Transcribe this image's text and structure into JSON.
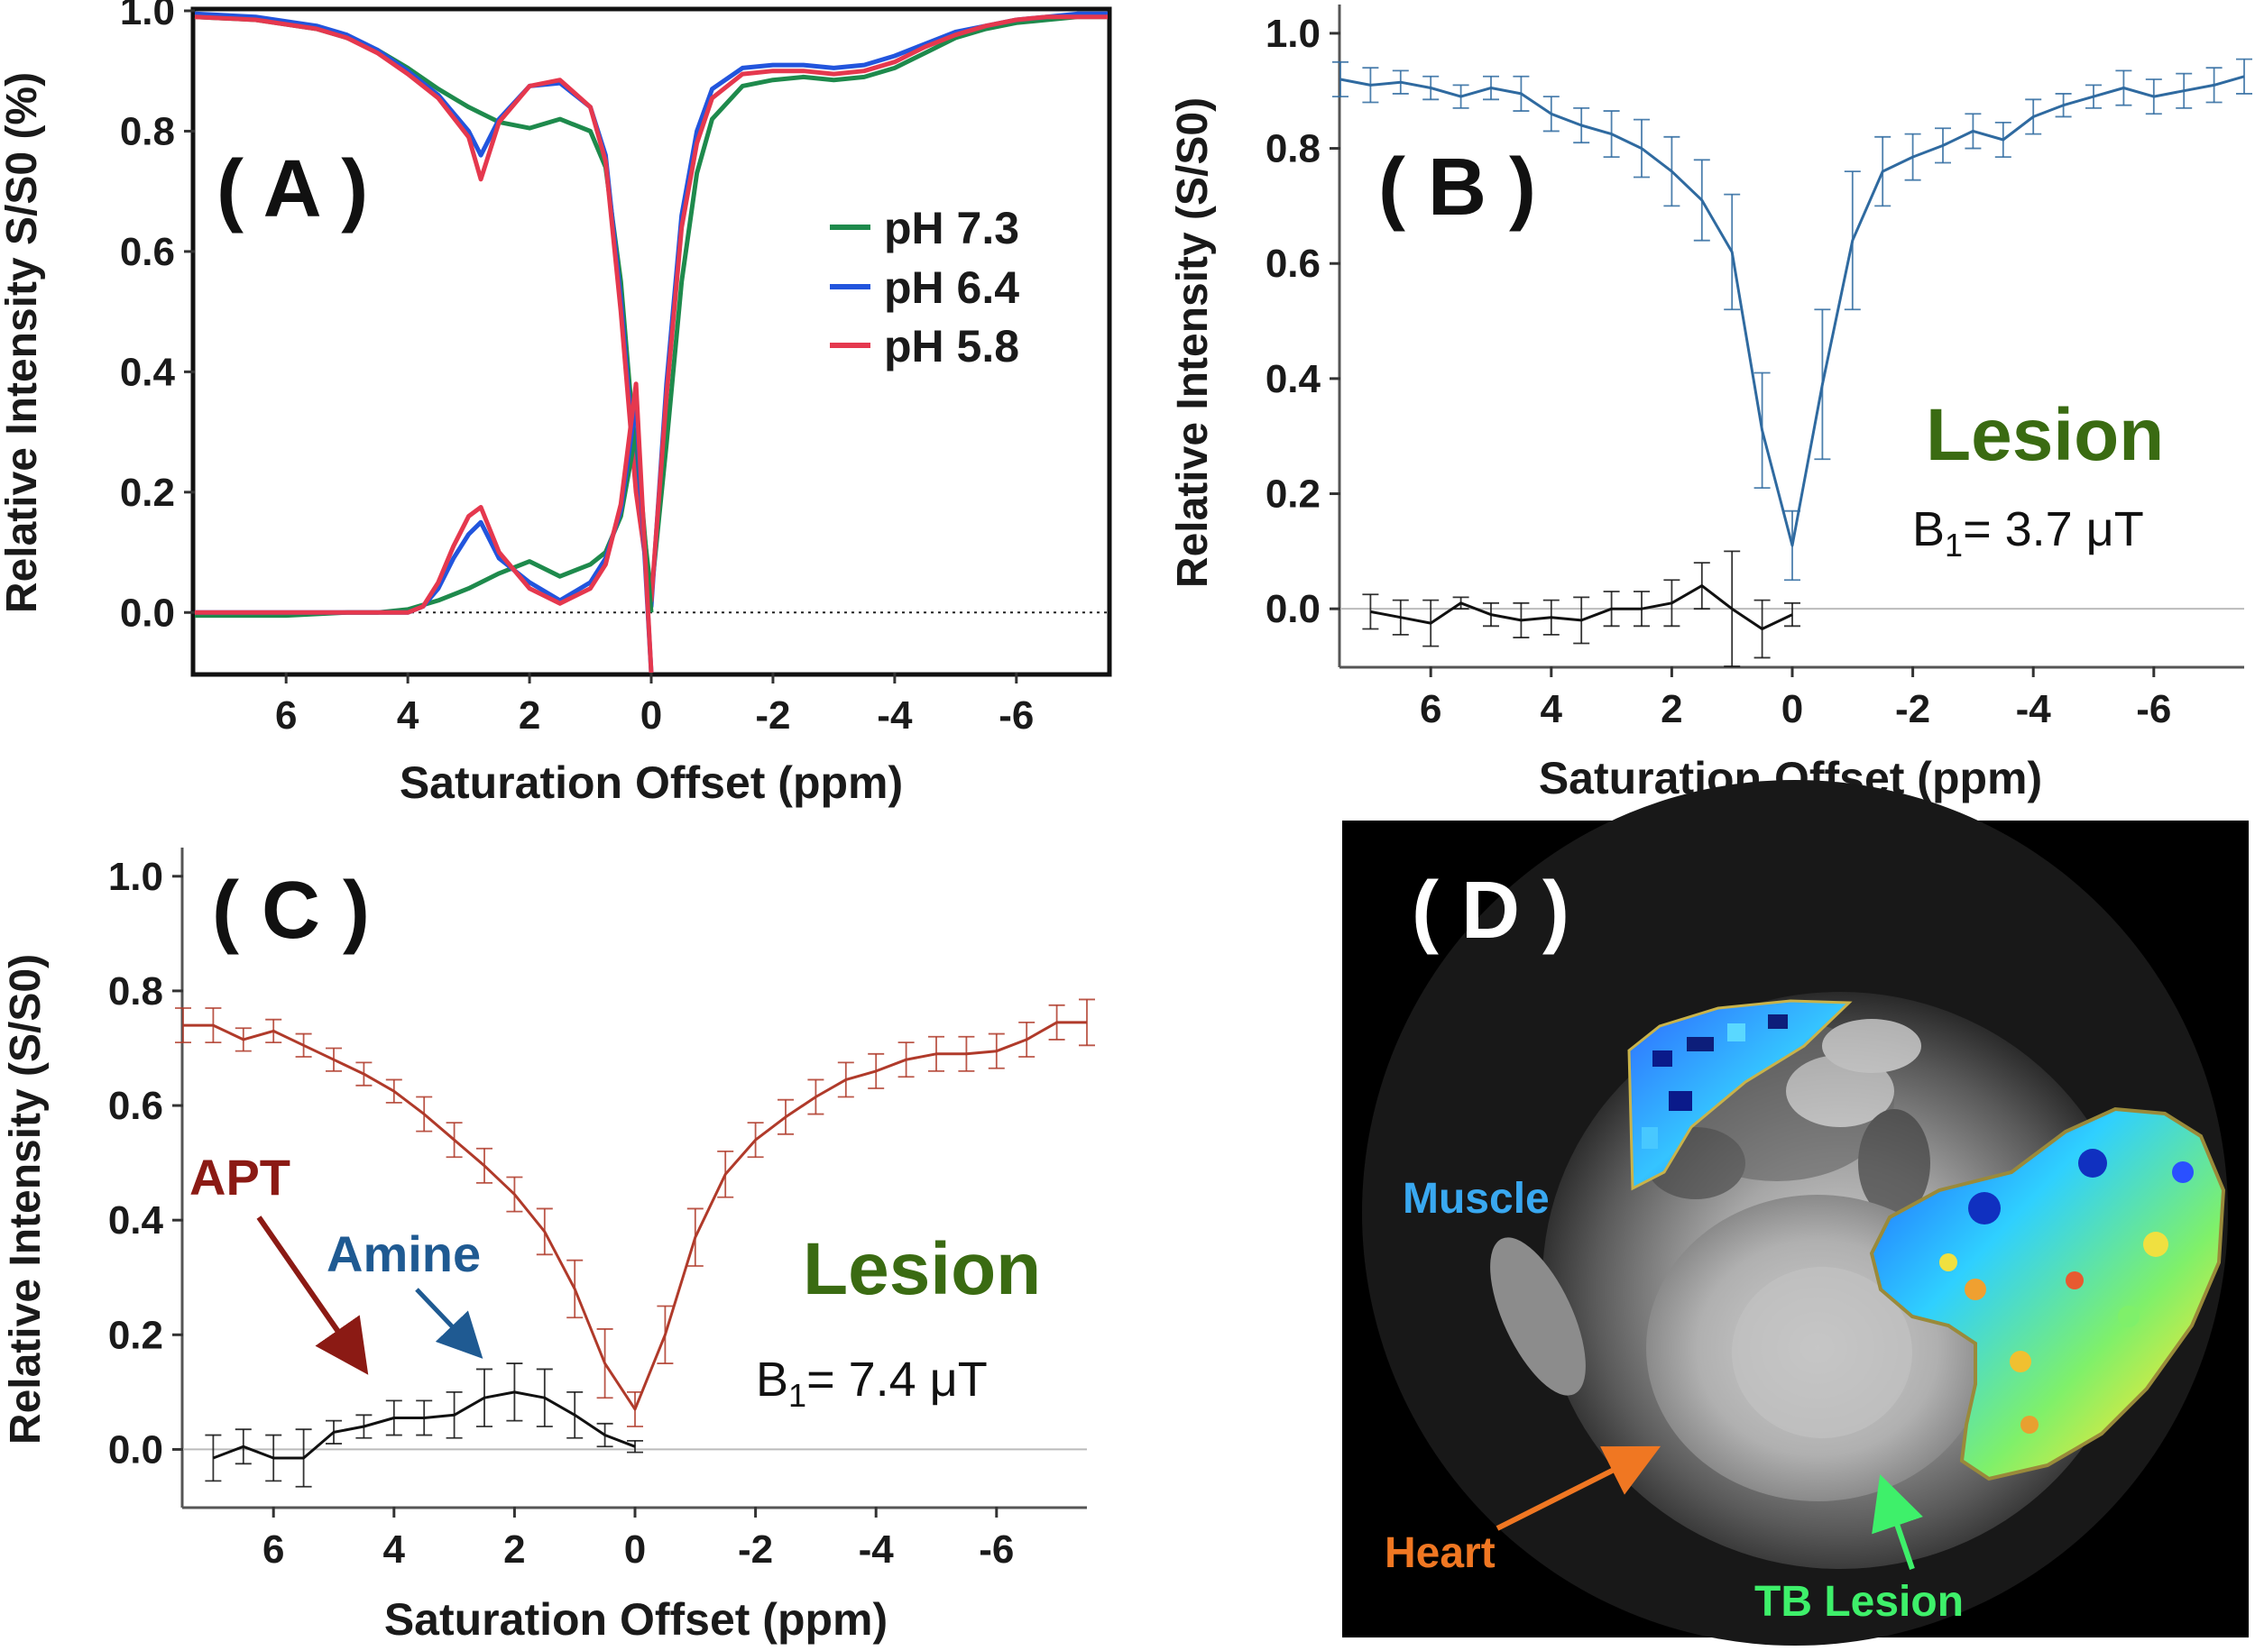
{
  "chart_data": [
    {
      "panel": "(A)",
      "type": "line",
      "ylabel": "Relative Intensity S/S0 (%)",
      "xlabel": "Saturation Offset (ppm)",
      "xlim": [
        7.5,
        -7.5
      ],
      "ylim": [
        -0.1,
        1.0
      ],
      "xticks": [
        "6",
        "4",
        "2",
        "0",
        "-2",
        "-4",
        "-6"
      ],
      "yticks": [
        "0.0",
        "0.2",
        "0.4",
        "0.6",
        "0.8",
        "1.0"
      ],
      "reference_line": 0,
      "legend": [
        "pH 7.3",
        "pH 6.4",
        "pH 5.8"
      ],
      "series": [
        {
          "name": "pH 7.3",
          "kind": "Z-spectrum",
          "color": "#1e8a4c",
          "x": [
            7.5,
            6.5,
            5.5,
            5,
            4.5,
            4,
            3.5,
            3,
            2.5,
            2,
            1.5,
            1,
            0.75,
            0.5,
            0.25,
            0,
            -0.25,
            -0.5,
            -0.75,
            -1,
            -1.5,
            -2,
            -2.5,
            -3,
            -3.5,
            -4,
            -4.5,
            -5,
            -5.5,
            -6,
            -6.5,
            -7,
            -7.5
          ],
          "y": [
            0.99,
            0.985,
            0.97,
            0.955,
            0.935,
            0.905,
            0.87,
            0.84,
            0.815,
            0.805,
            0.82,
            0.8,
            0.74,
            0.55,
            0.25,
            0.03,
            0.28,
            0.55,
            0.73,
            0.82,
            0.875,
            0.885,
            0.89,
            0.885,
            0.89,
            0.905,
            0.93,
            0.955,
            0.97,
            0.98,
            0.985,
            0.99,
            0.99
          ]
        },
        {
          "name": "pH 6.4",
          "kind": "Z-spectrum",
          "color": "#2255dd",
          "x": [
            7.5,
            6.5,
            5.5,
            5,
            4.5,
            4,
            3.5,
            3,
            2.8,
            2.5,
            2,
            1.5,
            1,
            0.75,
            0.5,
            0.25,
            0,
            -0.25,
            -0.5,
            -0.75,
            -1,
            -1.5,
            -2,
            -2.5,
            -3,
            -3.5,
            -4,
            -4.5,
            -5,
            -5.5,
            -6,
            -6.5,
            -7,
            -7.5
          ],
          "y": [
            0.995,
            0.99,
            0.975,
            0.96,
            0.935,
            0.9,
            0.86,
            0.8,
            0.76,
            0.82,
            0.875,
            0.88,
            0.84,
            0.76,
            0.52,
            0.22,
            0.01,
            0.38,
            0.66,
            0.8,
            0.87,
            0.905,
            0.91,
            0.91,
            0.905,
            0.91,
            0.925,
            0.945,
            0.965,
            0.975,
            0.985,
            0.99,
            0.995,
            0.995
          ]
        },
        {
          "name": "pH 5.8",
          "kind": "Z-spectrum",
          "color": "#e5384e",
          "x": [
            7.5,
            6.5,
            5.5,
            5,
            4.5,
            4,
            3.5,
            3,
            2.8,
            2.5,
            2,
            1.5,
            1,
            0.75,
            0.5,
            0.25,
            0,
            -0.25,
            -0.5,
            -0.75,
            -1,
            -1.5,
            -2,
            -2.5,
            -3,
            -3.5,
            -4,
            -4.5,
            -5,
            -5.5,
            -6,
            -6.5,
            -7,
            -7.5
          ],
          "y": [
            0.99,
            0.985,
            0.97,
            0.955,
            0.93,
            0.895,
            0.855,
            0.79,
            0.72,
            0.815,
            0.875,
            0.885,
            0.84,
            0.75,
            0.5,
            0.2,
            0.02,
            0.36,
            0.64,
            0.78,
            0.855,
            0.895,
            0.9,
            0.9,
            0.895,
            0.9,
            0.915,
            0.94,
            0.96,
            0.975,
            0.985,
            0.99,
            0.99,
            0.99
          ]
        },
        {
          "name": "pH 7.3",
          "kind": "MTR asymmetry",
          "color": "#1e8a4c",
          "x": [
            7.5,
            6,
            5,
            4.5,
            4,
            3.5,
            3,
            2.5,
            2,
            1.5,
            1,
            0.75,
            0.5,
            0.25,
            0
          ],
          "y": [
            -0.005,
            -0.005,
            0,
            0,
            0.005,
            0.02,
            0.04,
            0.065,
            0.085,
            0.06,
            0.08,
            0.1,
            0.16,
            0.3,
            0.0
          ]
        },
        {
          "name": "pH 6.4",
          "kind": "MTR asymmetry",
          "color": "#2255dd",
          "x": [
            7.5,
            6,
            5,
            4.5,
            4,
            3.75,
            3.5,
            3.25,
            3,
            2.8,
            2.5,
            2,
            1.5,
            1,
            0.75,
            0.5,
            0.25,
            0
          ],
          "y": [
            0,
            0,
            0,
            0,
            0,
            0.01,
            0.04,
            0.09,
            0.13,
            0.15,
            0.09,
            0.05,
            0.02,
            0.05,
            0.09,
            0.17,
            0.35,
            -0.1
          ]
        },
        {
          "name": "pH 5.8",
          "kind": "MTR asymmetry",
          "color": "#e5384e",
          "x": [
            7.5,
            6,
            5,
            4.5,
            4,
            3.75,
            3.5,
            3.25,
            3,
            2.8,
            2.5,
            2,
            1.5,
            1,
            0.75,
            0.5,
            0.25,
            0
          ],
          "y": [
            0,
            0,
            0,
            0,
            0,
            0.01,
            0.05,
            0.11,
            0.16,
            0.175,
            0.1,
            0.04,
            0.015,
            0.04,
            0.08,
            0.18,
            0.38,
            -0.1
          ]
        }
      ]
    },
    {
      "panel": "(B)",
      "type": "line",
      "ylabel": "Relative Intensity (S/S0)",
      "xlabel": "Saturation Offset (ppm)",
      "xlim": [
        7.5,
        -7.5
      ],
      "ylim": [
        -0.1,
        1.05
      ],
      "xticks": [
        "6",
        "4",
        "2",
        "0",
        "-2",
        "-4",
        "-6"
      ],
      "yticks": [
        "0.0",
        "0.2",
        "0.4",
        "0.6",
        "0.8",
        "1.0"
      ],
      "annotation": "Lesion",
      "b1": {
        "prefix": "B",
        "sub": "1",
        "value": "= 3.7  μT"
      },
      "series": [
        {
          "name": "Z-spectrum",
          "color": "#2f6aa0",
          "x": [
            7.5,
            7,
            6.5,
            6,
            5.5,
            5,
            4.5,
            4,
            3.5,
            3,
            2.5,
            2,
            1.5,
            1,
            0.5,
            0,
            -0.5,
            -1,
            -1.5,
            -2,
            -2.5,
            -3,
            -3.5,
            -4,
            -4.5,
            -5,
            -5.5,
            -6,
            -6.5,
            -7,
            -7.5
          ],
          "y": [
            0.92,
            0.91,
            0.915,
            0.905,
            0.89,
            0.905,
            0.895,
            0.86,
            0.84,
            0.825,
            0.8,
            0.76,
            0.71,
            0.62,
            0.31,
            0.11,
            0.39,
            0.64,
            0.76,
            0.785,
            0.805,
            0.83,
            0.815,
            0.855,
            0.875,
            0.89,
            0.905,
            0.89,
            0.9,
            0.91,
            0.925
          ],
          "err": [
            0.03,
            0.03,
            0.02,
            0.02,
            0.02,
            0.02,
            0.03,
            0.03,
            0.03,
            0.04,
            0.05,
            0.06,
            0.07,
            0.1,
            0.1,
            0.06,
            0.13,
            0.12,
            0.06,
            0.04,
            0.03,
            0.03,
            0.03,
            0.03,
            0.02,
            0.02,
            0.03,
            0.03,
            0.03,
            0.03,
            0.03
          ]
        },
        {
          "name": "MTR asymmetry",
          "color": "#111111",
          "x": [
            7,
            6.5,
            6,
            5.5,
            5,
            4.5,
            4,
            3.5,
            3,
            2.5,
            2,
            1.5,
            1,
            0.5,
            0
          ],
          "y": [
            -0.005,
            -0.015,
            -0.025,
            0.01,
            -0.01,
            -0.02,
            -0.015,
            -0.02,
            0.0,
            0.0,
            0.01,
            0.04,
            0.0,
            -0.035,
            -0.01
          ],
          "err": [
            0.03,
            0.03,
            0.04,
            0.01,
            0.02,
            0.03,
            0.03,
            0.04,
            0.03,
            0.03,
            0.04,
            0.04,
            0.1,
            0.05,
            0.02
          ]
        }
      ]
    },
    {
      "panel": "(C)",
      "type": "line",
      "ylabel": "Relative Intensity (S/S0)",
      "xlabel": "Saturation Offset (ppm)",
      "xlim": [
        7.5,
        -7.5
      ],
      "ylim": [
        -0.1,
        1.05
      ],
      "xticks": [
        "6",
        "4",
        "2",
        "0",
        "-2",
        "-4",
        "-6"
      ],
      "yticks": [
        "0.0",
        "0.2",
        "0.4",
        "0.6",
        "0.8",
        "1.0"
      ],
      "annotation": "Lesion",
      "b1": {
        "prefix": "B",
        "sub": "1",
        "value": "= 7.4  μT"
      },
      "arrows": [
        {
          "label": "APT",
          "color": "#8b1a14"
        },
        {
          "label": "Amine",
          "color": "#1f5a92"
        }
      ],
      "series": [
        {
          "name": "Z-spectrum",
          "color": "#b03a2a",
          "x": [
            7.5,
            7,
            6.5,
            6,
            5.5,
            5,
            4.5,
            4,
            3.5,
            3,
            2.5,
            2,
            1.5,
            1,
            0.5,
            0,
            -0.5,
            -1,
            -1.5,
            -2,
            -2.5,
            -3,
            -3.5,
            -4,
            -4.5,
            -5,
            -5.5,
            -6,
            -6.5,
            -7,
            -7.5
          ],
          "y": [
            0.74,
            0.74,
            0.715,
            0.73,
            0.705,
            0.68,
            0.655,
            0.625,
            0.585,
            0.54,
            0.495,
            0.445,
            0.38,
            0.28,
            0.15,
            0.07,
            0.2,
            0.37,
            0.48,
            0.54,
            0.58,
            0.615,
            0.645,
            0.66,
            0.68,
            0.69,
            0.69,
            0.695,
            0.715,
            0.745,
            0.745
          ],
          "err": [
            0.03,
            0.03,
            0.02,
            0.02,
            0.02,
            0.02,
            0.02,
            0.02,
            0.03,
            0.03,
            0.03,
            0.03,
            0.04,
            0.05,
            0.06,
            0.03,
            0.05,
            0.05,
            0.04,
            0.03,
            0.03,
            0.03,
            0.03,
            0.03,
            0.03,
            0.03,
            0.03,
            0.03,
            0.03,
            0.03,
            0.04
          ]
        },
        {
          "name": "MTR asymmetry",
          "color": "#111111",
          "x": [
            7,
            6.5,
            6,
            5.5,
            5,
            4.5,
            4,
            3.5,
            3,
            2.5,
            2,
            1.5,
            1,
            0.5,
            0
          ],
          "y": [
            -0.015,
            0.005,
            -0.015,
            -0.015,
            0.03,
            0.04,
            0.055,
            0.055,
            0.06,
            0.09,
            0.1,
            0.09,
            0.06,
            0.025,
            0.005
          ],
          "err": [
            0.04,
            0.03,
            0.04,
            0.05,
            0.02,
            0.02,
            0.03,
            0.03,
            0.04,
            0.05,
            0.05,
            0.05,
            0.04,
            0.02,
            0.01
          ]
        }
      ]
    }
  ],
  "panel_d": {
    "panel": "( D )",
    "labels": {
      "muscle": "Muscle",
      "heart": "Heart",
      "tb_lesion": "TB Lesion"
    },
    "colors": {
      "muscle": "#39a8f0",
      "heart": "#f07722",
      "tb_lesion": "#3ef06a"
    }
  },
  "panel_labels": {
    "a": "( A )",
    "b": "( B )",
    "c": "( C )",
    "d": "( D )"
  }
}
